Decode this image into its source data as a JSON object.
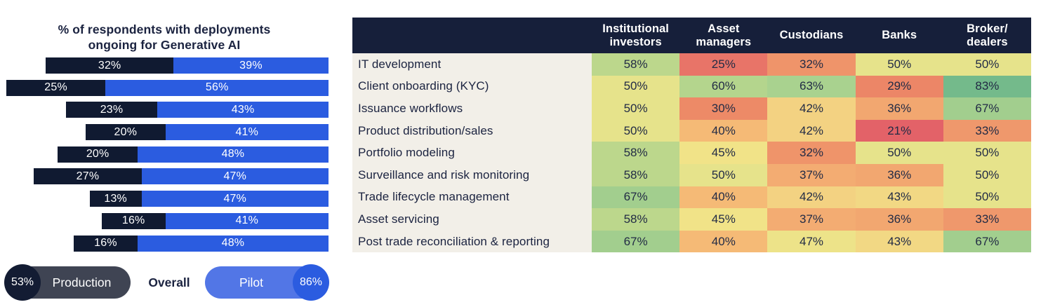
{
  "chart_data": [
    {
      "type": "bar",
      "title": "% of respondents with deployments ongoing for Generative AI",
      "title_display": "% of respondents with deployments\nongoing for Generative AI",
      "orientation": "horizontal",
      "stacked": true,
      "right_aligned": true,
      "unit": "%",
      "series": [
        {
          "name": "Production",
          "color": "#101a31",
          "values": [
            32,
            25,
            23,
            20,
            20,
            27,
            13,
            16,
            16
          ]
        },
        {
          "name": "Pilot",
          "color": "#2b5ce0",
          "values": [
            39,
            56,
            43,
            41,
            48,
            47,
            47,
            41,
            48
          ]
        }
      ],
      "legend": {
        "production_value": "53%",
        "production_label": "Production",
        "overall_label": "Overall",
        "pilot_label": "Pilot",
        "pilot_value": "86%"
      },
      "legend_colors": {
        "production_pill": "#3f4453",
        "production_circle": "#131c33",
        "pilot_pill": "#5276e6",
        "pilot_circle": "#2b5ce0"
      }
    },
    {
      "type": "heatmap",
      "unit": "%",
      "columns": [
        "Institutional\ninvestors",
        "Asset\nmanagers",
        "Custodians",
        "Banks",
        "Broker/\ndealers"
      ],
      "rows": [
        {
          "label": "IT development",
          "values": [
            58,
            25,
            32,
            50,
            50
          ]
        },
        {
          "label": "Client onboarding (KYC)",
          "values": [
            50,
            60,
            63,
            29,
            83
          ]
        },
        {
          "label": "Issuance workflows",
          "values": [
            50,
            30,
            42,
            36,
            67
          ]
        },
        {
          "label": "Product distribution/sales",
          "values": [
            50,
            40,
            42,
            21,
            33
          ]
        },
        {
          "label": "Portfolio modeling",
          "values": [
            58,
            45,
            32,
            50,
            50
          ]
        },
        {
          "label": "Surveillance and risk monitoring",
          "values": [
            58,
            50,
            37,
            36,
            50
          ]
        },
        {
          "label": "Trade lifecycle management",
          "values": [
            67,
            40,
            42,
            43,
            50
          ]
        },
        {
          "label": "Asset servicing",
          "values": [
            58,
            45,
            37,
            36,
            33
          ]
        },
        {
          "label": "Post trade reconciliation & reporting",
          "values": [
            67,
            40,
            47,
            43,
            67
          ]
        }
      ],
      "colors": {
        "header_bg": "#161f3a",
        "header_text": "#ffffff",
        "label_bg": "#f2efe8",
        "value_text": "#222b45"
      },
      "colormap_stops": [
        [
          20,
          "#e25d68"
        ],
        [
          30,
          "#ed8a67"
        ],
        [
          40,
          "#f5ba76"
        ],
        [
          42,
          "#f3d282"
        ],
        [
          45,
          "#f1e388"
        ],
        [
          50,
          "#e6e38b"
        ],
        [
          58,
          "#bcd78c"
        ],
        [
          63,
          "#a9d28f"
        ],
        [
          70,
          "#9ccb8e"
        ],
        [
          85,
          "#6eb78a"
        ]
      ]
    }
  ]
}
